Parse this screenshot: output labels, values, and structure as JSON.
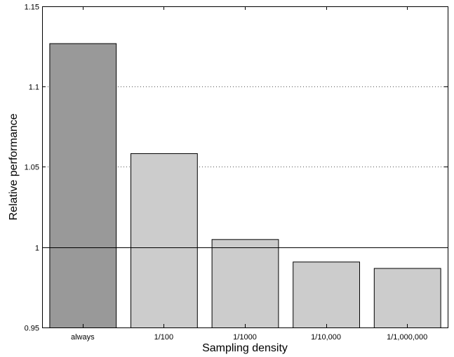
{
  "chart_data": {
    "type": "bar",
    "title": "",
    "xlabel": "Sampling density",
    "ylabel": "Relative performance",
    "categories": [
      "always",
      "1/100",
      "1/1000",
      "1/10,000",
      "1/1,000,000"
    ],
    "values": [
      1.127,
      1.0585,
      1.005,
      0.991,
      0.987
    ],
    "bar_colors": [
      "#999999",
      "#cccccc",
      "#cccccc",
      "#cccccc",
      "#cccccc"
    ],
    "ylim": [
      0.95,
      1.15
    ],
    "yticks": [
      0.95,
      1,
      1.05,
      1.1,
      1.15
    ],
    "ytick_labels": [
      "0.95",
      "1",
      "1.05",
      "1.1",
      "1.15"
    ],
    "gridlines": [
      1.05,
      1.1
    ],
    "reference_line": 1,
    "grid": true
  }
}
